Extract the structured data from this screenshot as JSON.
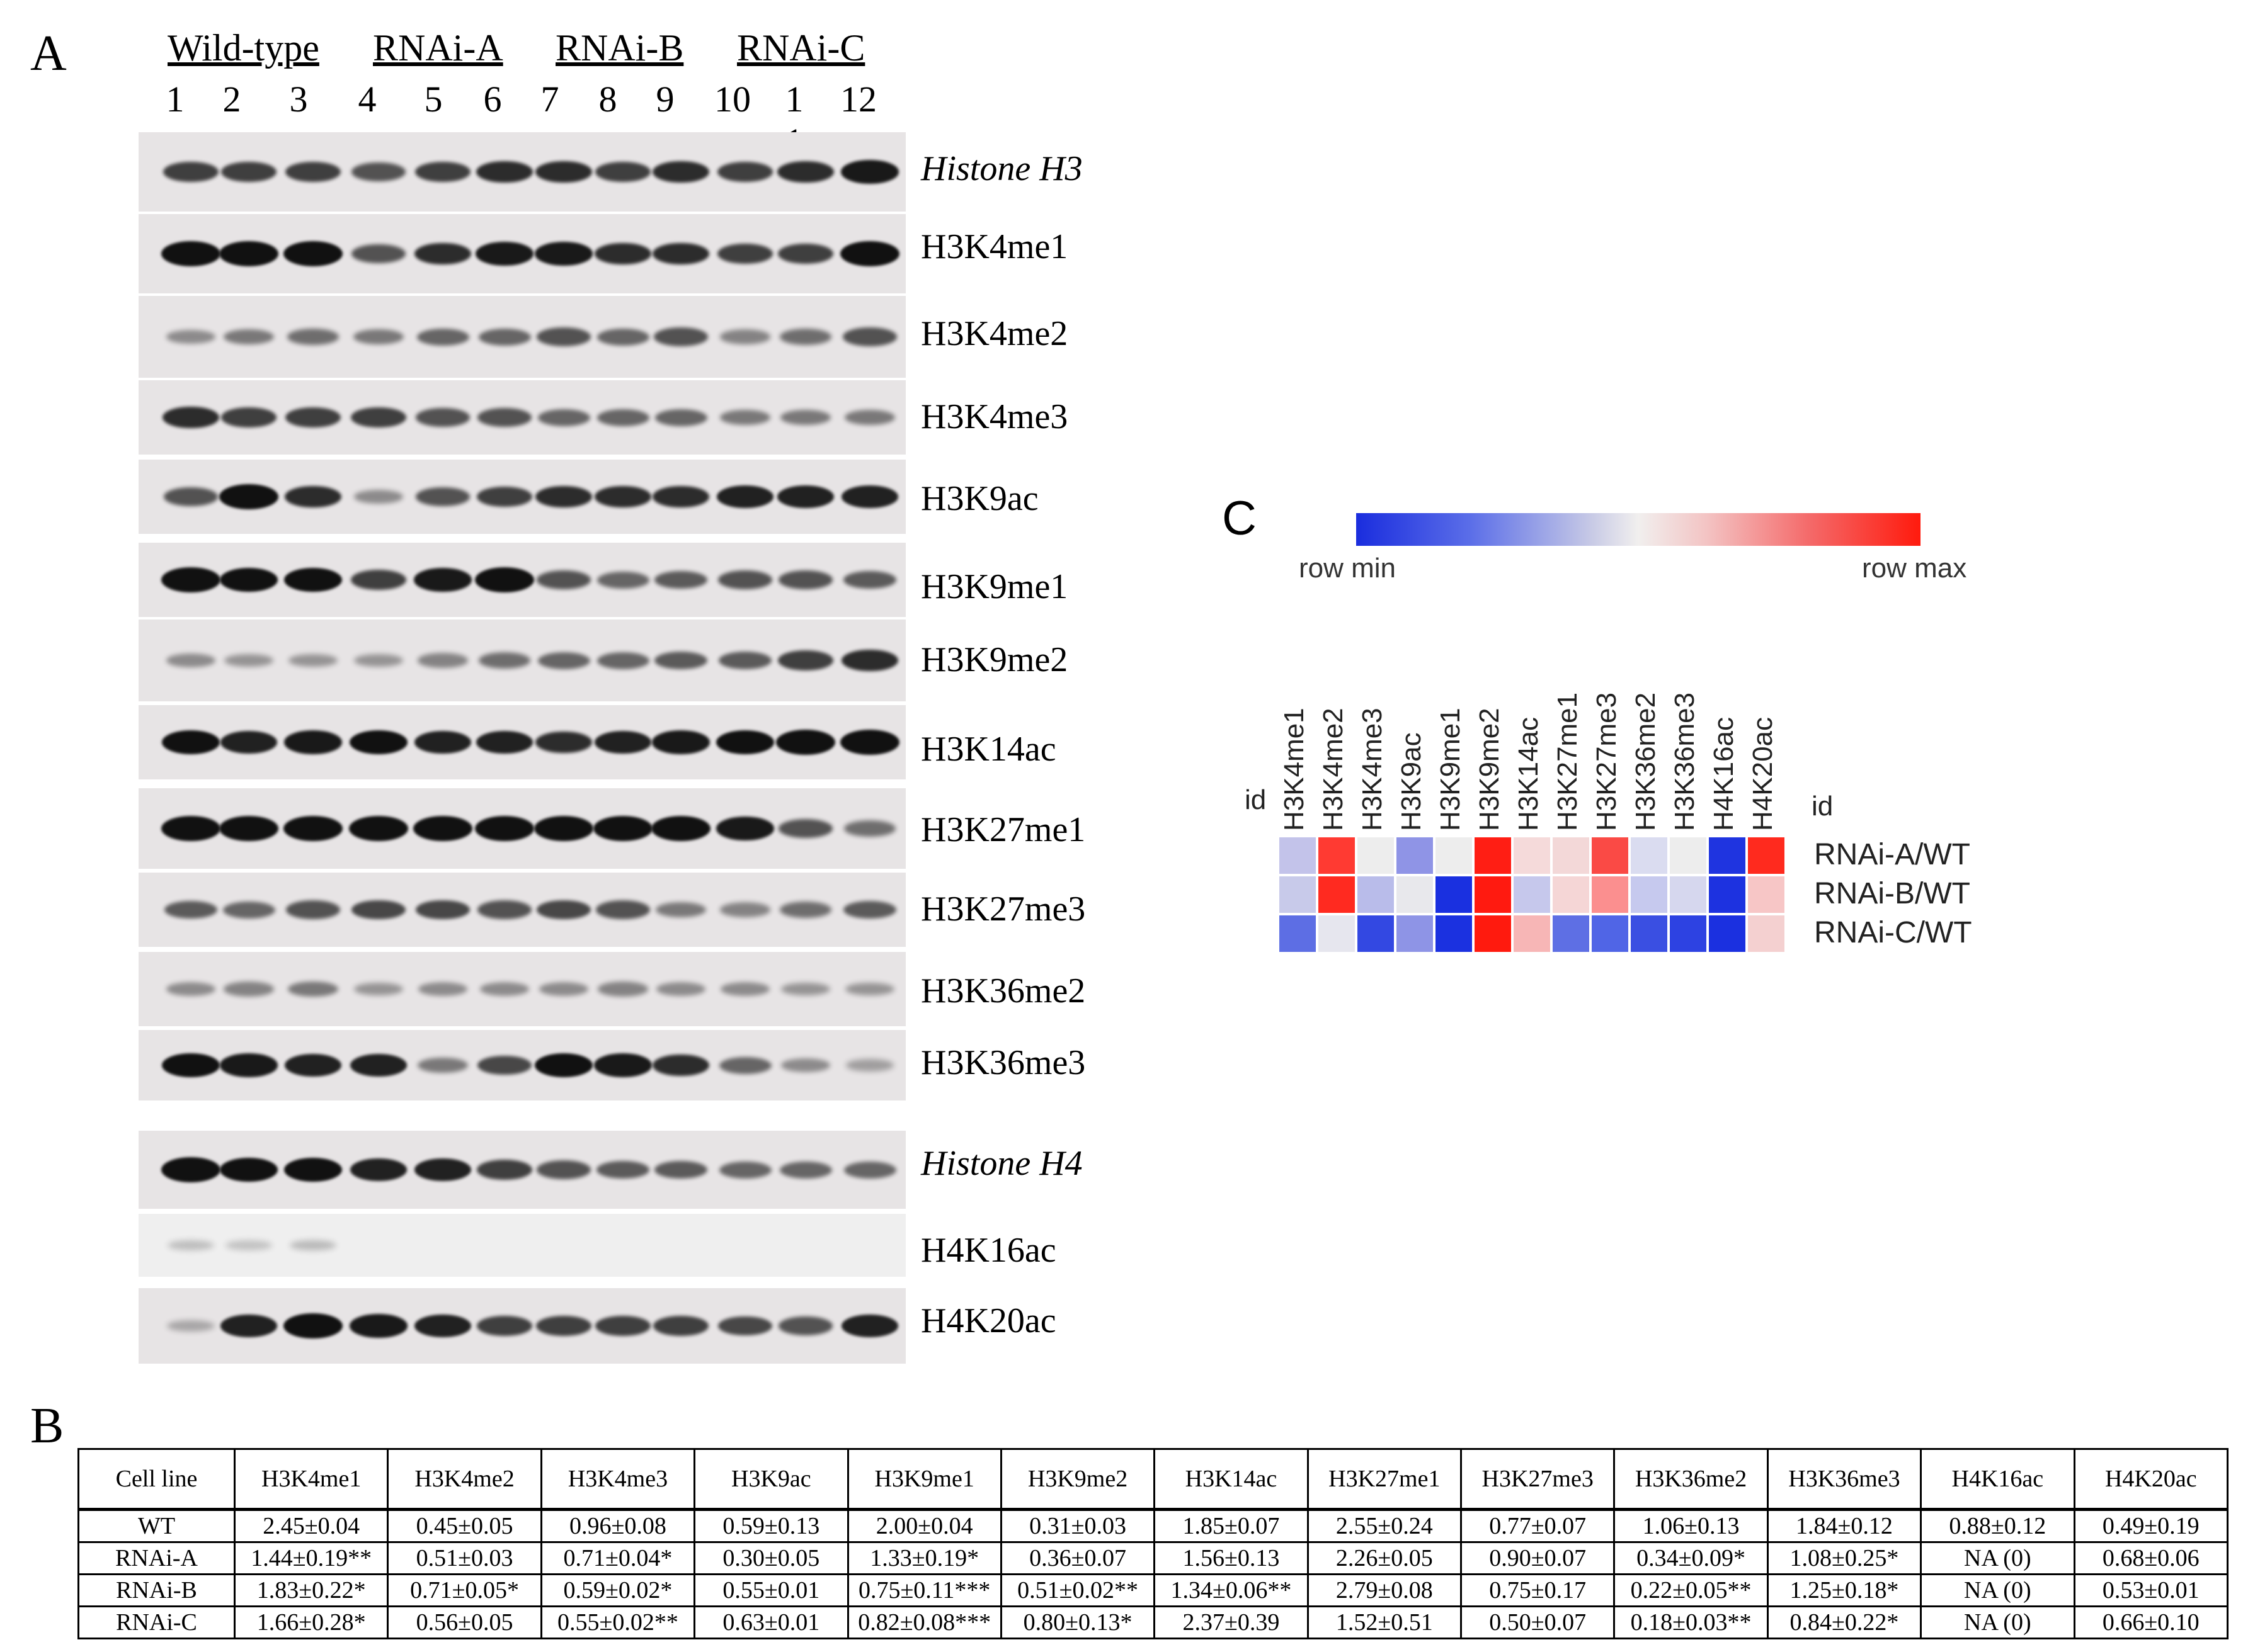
{
  "panel_labels": {
    "a": "A",
    "b": "B",
    "c": "C"
  },
  "panel_a": {
    "groups": [
      "Wild-type",
      "RNAi-A",
      "RNAi-B",
      "RNAi-C"
    ],
    "lanes": [
      "1",
      "2",
      "3",
      "4",
      "5",
      "6",
      "7",
      "8",
      "9",
      "10",
      "1 1",
      "12"
    ],
    "blots": [
      {
        "label": "Histone H3",
        "italic": true
      },
      {
        "label": "H3K4me1",
        "italic": false
      },
      {
        "label": "H3K4me2",
        "italic": false
      },
      {
        "label": "H3K4me3",
        "italic": false
      },
      {
        "label": "H3K9ac",
        "italic": false
      },
      {
        "label": "H3K9me1",
        "italic": false
      },
      {
        "label": "H3K9me2",
        "italic": false
      },
      {
        "label": "H3K14ac",
        "italic": false
      },
      {
        "label": "H3K27me1",
        "italic": false
      },
      {
        "label": "H3K27me3",
        "italic": false
      },
      {
        "label": "H3K36me2",
        "italic": false
      },
      {
        "label": "H3K36me3",
        "italic": false
      },
      {
        "label": "Histone H4",
        "italic": true
      },
      {
        "label": "H4K16ac",
        "italic": false
      },
      {
        "label": "H4K20ac",
        "italic": false
      }
    ]
  },
  "panel_b": {
    "headers": [
      "Cell line",
      "H3K4me1",
      "H3K4me2",
      "H3K4me3",
      "H3K9ac",
      "H3K9me1",
      "H3K9me2",
      "H3K14ac",
      "H3K27me1",
      "H3K27me3",
      "H3K36me2",
      "H3K36me3",
      "H4K16ac",
      "H4K20ac"
    ],
    "rows": [
      [
        "WT",
        "2.45±0.04",
        "0.45±0.05",
        "0.96±0.08",
        "0.59±0.13",
        "2.00±0.04",
        "0.31±0.03",
        "1.85±0.07",
        "2.55±0.24",
        "0.77±0.07",
        "1.06±0.13",
        "1.84±0.12",
        "0.88±0.12",
        "0.49±0.19"
      ],
      [
        "RNAi-A",
        "1.44±0.19**",
        "0.51±0.03",
        "0.71±0.04*",
        "0.30±0.05",
        "1.33±0.19*",
        "0.36±0.07",
        "1.56±0.13",
        "2.26±0.05",
        "0.90±0.07",
        "0.34±0.09*",
        "1.08±0.25*",
        "NA (0)",
        "0.68±0.06"
      ],
      [
        "RNAi-B",
        "1.83±0.22*",
        "0.71±0.05*",
        "0.59±0.02*",
        "0.55±0.01",
        "0.75±0.11***",
        "0.51±0.02**",
        "1.34±0.06**",
        "2.79±0.08",
        "0.75±0.17",
        "0.22±0.05**",
        "1.25±0.18*",
        "NA (0)",
        "0.53±0.01"
      ],
      [
        "RNAi-C",
        "1.66±0.28*",
        "0.56±0.05",
        "0.55±0.02**",
        "0.63±0.01",
        "0.82±0.08***",
        "0.80±0.13*",
        "2.37±0.39",
        "1.52±0.51",
        "0.50±0.07",
        "0.18±0.03**",
        "0.84±0.22*",
        "NA (0)",
        "0.66±0.10"
      ]
    ]
  },
  "panel_c": {
    "legend_min": "row min",
    "legend_max": "row max",
    "id_label": "id",
    "columns": [
      "H3K4me1",
      "H3K4me2",
      "H3K4me3",
      "H3K9ac",
      "H3K9me1",
      "H3K9me2",
      "H3K14ac",
      "H3K27me1",
      "H3K27me3",
      "H3K36me2",
      "H3K36me3",
      "H4K16ac",
      "H4K20ac"
    ],
    "rows": [
      "RNAi-A/WT",
      "RNAi-B/WT",
      "RNAi-C/WT"
    ],
    "colors": [
      [
        "#c3c3ea",
        "#ff3a32",
        "#ededed",
        "#8f94e6",
        "#ededed",
        "#ff1e14",
        "#f5dada",
        "#f3d8d8",
        "#fa4a45",
        "#dadcf0",
        "#ededed",
        "#1f34e0",
        "#ff2a1e"
      ],
      [
        "#c8caea",
        "#ff2a20",
        "#b9bcea",
        "#e8e8ec",
        "#1a30e0",
        "#ff1a10",
        "#c6c8ec",
        "#f5d6d6",
        "#fb8f8f",
        "#c6c9ee",
        "#d6d7ee",
        "#1d32e0",
        "#f7c6c6"
      ],
      [
        "#5d6ee4",
        "#e6e6ee",
        "#3348e2",
        "#8e94e6",
        "#1b31e0",
        "#ff1a0e",
        "#f7b6b6",
        "#5e6fe4",
        "#5065e6",
        "#3a4fe2",
        "#2d42e2",
        "#1b30e0",
        "#f4d0d0"
      ]
    ]
  }
}
